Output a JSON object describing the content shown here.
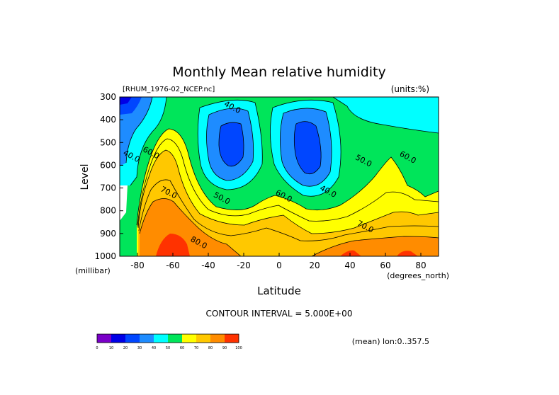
{
  "chart_data": {
    "type": "heatmap",
    "title": "Monthly Mean relative humidity",
    "file_label": "[RHUM_1976-02_NCEP.nc]",
    "units_label": "(units:%)",
    "xlabel": "Latitude",
    "xunits": "(degrees_north)",
    "ylabel": "Level",
    "yunits": "(millibar)",
    "xlim": [
      -90,
      90
    ],
    "ylim": [
      1000,
      300
    ],
    "x_ticks": [
      -80,
      -60,
      -40,
      -20,
      0,
      20,
      40,
      60,
      80
    ],
    "y_ticks": [
      300,
      400,
      500,
      600,
      700,
      800,
      900,
      1000
    ],
    "contour_interval_text": "CONTOUR INTERVAL = 5.000E+00",
    "averaging_text": "(mean) lon:0..357.5",
    "colorbar": {
      "ticks": [
        0,
        10,
        20,
        30,
        40,
        50,
        60,
        70,
        80,
        90,
        100
      ],
      "colors": [
        "#7a00c8",
        "#0000e6",
        "#0046ff",
        "#1e8cff",
        "#00ffff",
        "#00e55a",
        "#ffff00",
        "#ffc800",
        "#ff8c00",
        "#ff3200"
      ]
    },
    "contour_labels": [
      {
        "text": "40.0",
        "lat": -27,
        "level": 355
      },
      {
        "text": "40.0",
        "lat": -84,
        "level": 570
      },
      {
        "text": "60.0",
        "lat": -73,
        "level": 555
      },
      {
        "text": "70.0",
        "lat": -63,
        "level": 730
      },
      {
        "text": "50.0",
        "lat": -33,
        "level": 755
      },
      {
        "text": "80.0",
        "lat": -46,
        "level": 950
      },
      {
        "text": "60.0",
        "lat": 2,
        "level": 745
      },
      {
        "text": "40.0",
        "lat": 27,
        "level": 725
      },
      {
        "text": "50.0",
        "lat": 47,
        "level": 590
      },
      {
        "text": "70.0",
        "lat": 48,
        "level": 880
      },
      {
        "text": "60.0",
        "lat": 72,
        "level": 575
      }
    ],
    "grid": false
  }
}
